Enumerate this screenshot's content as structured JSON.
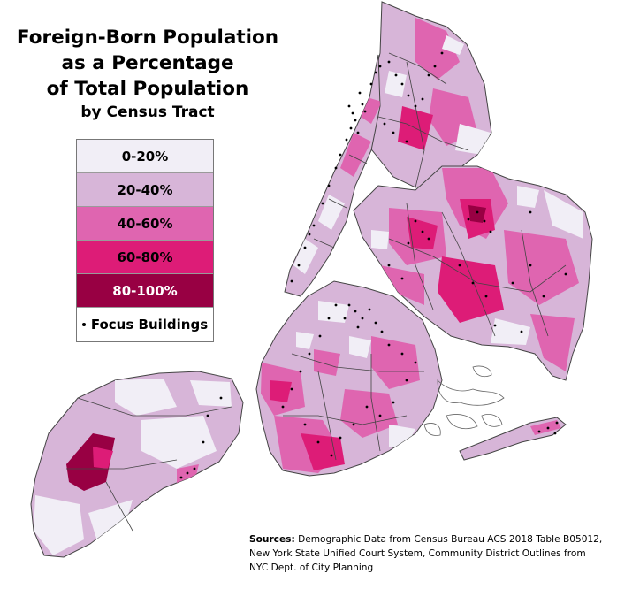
{
  "title": {
    "line1": "Foreign-Born Population",
    "line2": "as a Percentage",
    "line3": "of Total Population",
    "line4": "by Census Tract"
  },
  "legend": {
    "classes": [
      {
        "label": "0-20%",
        "color": "#f1eef6"
      },
      {
        "label": "20-40%",
        "color": "#d7b5d8"
      },
      {
        "label": "40-60%",
        "color": "#df65b0"
      },
      {
        "label": "60-80%",
        "color": "#dd1c77"
      },
      {
        "label": "80-100%",
        "color": "#980043"
      }
    ],
    "focus_label": "Focus Buildings"
  },
  "sources": {
    "heading": "Sources:",
    "text": "Demographic Data from Census Bureau ACS 2018 Table B05012, New York State Unified Court System, Community District Outlines from NYC Dept. of City Planning"
  }
}
